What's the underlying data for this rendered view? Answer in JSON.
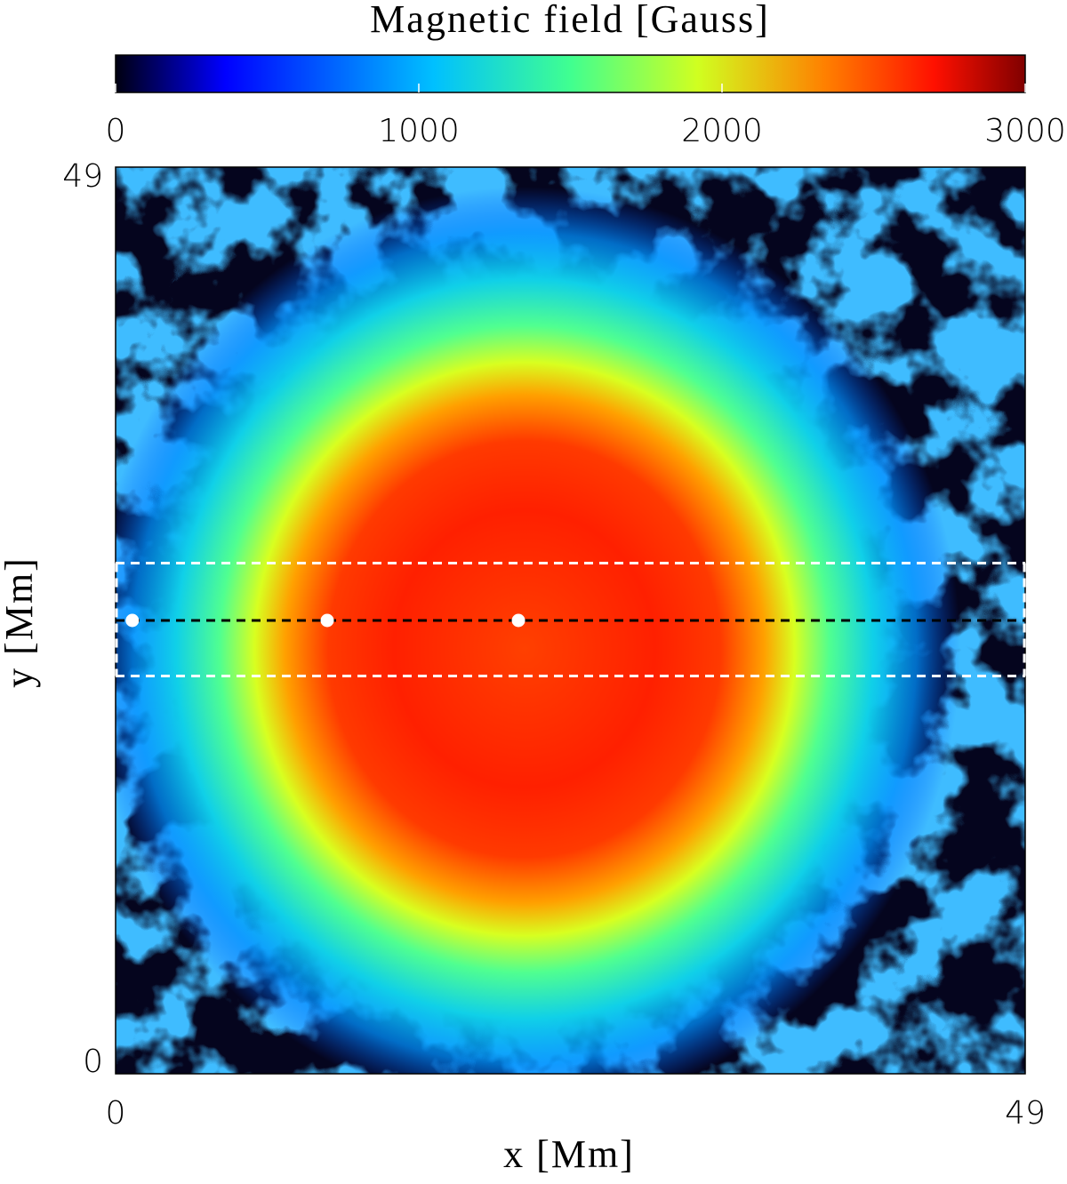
{
  "chart_data": {
    "type": "heatmap",
    "colorbar": {
      "title": "Magnetic field [Gauss]",
      "lim": [
        0,
        3000
      ],
      "ticks": [
        0,
        1000,
        2000,
        3000
      ]
    },
    "xlabel": "x [Mm]",
    "ylabel": "y [Mm]",
    "xlim": [
      0,
      49
    ],
    "xticks": [
      0,
      49
    ],
    "ylim": [
      0,
      49
    ],
    "yticks": [
      0,
      49
    ],
    "markers": {
      "color": "#ffffff",
      "x": [
        0.9,
        11.4,
        21.7
      ],
      "y": [
        24.5,
        24.5,
        24.5
      ]
    },
    "hlines": {
      "y": [
        27.6,
        24.5,
        21.5
      ],
      "colors": [
        "#ffffff",
        "#000000",
        "#ffffff"
      ]
    }
  }
}
